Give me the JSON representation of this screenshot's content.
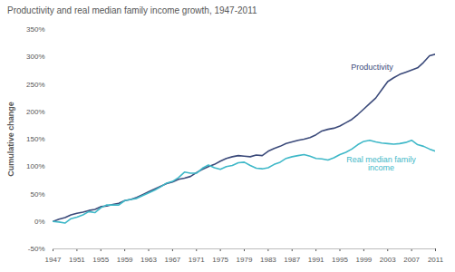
{
  "chart_data": {
    "type": "line",
    "title": "Productivity and real median family income growth, 1947-2011",
    "y_label": "Cumulative change",
    "x": [
      1947,
      1948,
      1949,
      1950,
      1951,
      1952,
      1953,
      1954,
      1955,
      1956,
      1957,
      1958,
      1959,
      1960,
      1961,
      1962,
      1963,
      1964,
      1965,
      1966,
      1967,
      1968,
      1969,
      1970,
      1971,
      1972,
      1973,
      1974,
      1975,
      1976,
      1977,
      1978,
      1979,
      1980,
      1981,
      1982,
      1983,
      1984,
      1985,
      1986,
      1987,
      1988,
      1989,
      1990,
      1991,
      1992,
      1993,
      1994,
      1995,
      1996,
      1997,
      1998,
      1999,
      2000,
      2001,
      2002,
      2003,
      2004,
      2005,
      2006,
      2007,
      2008,
      2009,
      2010,
      2011
    ],
    "series": [
      {
        "name": "Productivity",
        "color": "#3b4a7a",
        "values": [
          0,
          4,
          7,
          12,
          15,
          17,
          20,
          22,
          27,
          28,
          31,
          33,
          38,
          40,
          44,
          49,
          54,
          59,
          64,
          69,
          72,
          77,
          79,
          82,
          89,
          95,
          100,
          104,
          110,
          115,
          118,
          120,
          119,
          118,
          121,
          120,
          128,
          133,
          137,
          142,
          145,
          148,
          150,
          153,
          158,
          165,
          168,
          170,
          174,
          180,
          186,
          195,
          205,
          215,
          225,
          240,
          255,
          262,
          268,
          272,
          276,
          280,
          290,
          302,
          305
        ]
      },
      {
        "name": "Real median family income",
        "color": "#3fb8c8",
        "values": [
          0,
          -1,
          -3,
          5,
          8,
          12,
          18,
          16,
          25,
          30,
          30,
          30,
          38,
          40,
          42,
          47,
          52,
          57,
          63,
          70,
          73,
          80,
          90,
          88,
          88,
          97,
          103,
          98,
          95,
          100,
          102,
          107,
          108,
          102,
          97,
          96,
          98,
          104,
          108,
          115,
          118,
          120,
          122,
          119,
          115,
          114,
          112,
          116,
          122,
          126,
          132,
          140,
          146,
          148,
          145,
          143,
          142,
          141,
          142,
          144,
          148,
          140,
          137,
          132,
          128
        ]
      }
    ],
    "xlim": [
      1947,
      2011
    ],
    "xticks": [
      1947,
      1951,
      1955,
      1959,
      1963,
      1967,
      1971,
      1975,
      1979,
      1983,
      1987,
      1991,
      1995,
      1999,
      2003,
      2007,
      2011
    ],
    "ylim": [
      -50,
      350
    ],
    "yticks": [
      {
        "value": -50,
        "label": "-50%"
      },
      {
        "value": 0,
        "label": "0%"
      },
      {
        "value": 50,
        "label": "50%"
      },
      {
        "value": 100,
        "label": "100%"
      },
      {
        "value": 150,
        "label": "150%"
      },
      {
        "value": 200,
        "label": "200%"
      },
      {
        "value": 250,
        "label": "250%"
      },
      {
        "value": 300,
        "label": "300%"
      },
      {
        "value": 350,
        "label": "350%"
      }
    ],
    "grid": false
  }
}
